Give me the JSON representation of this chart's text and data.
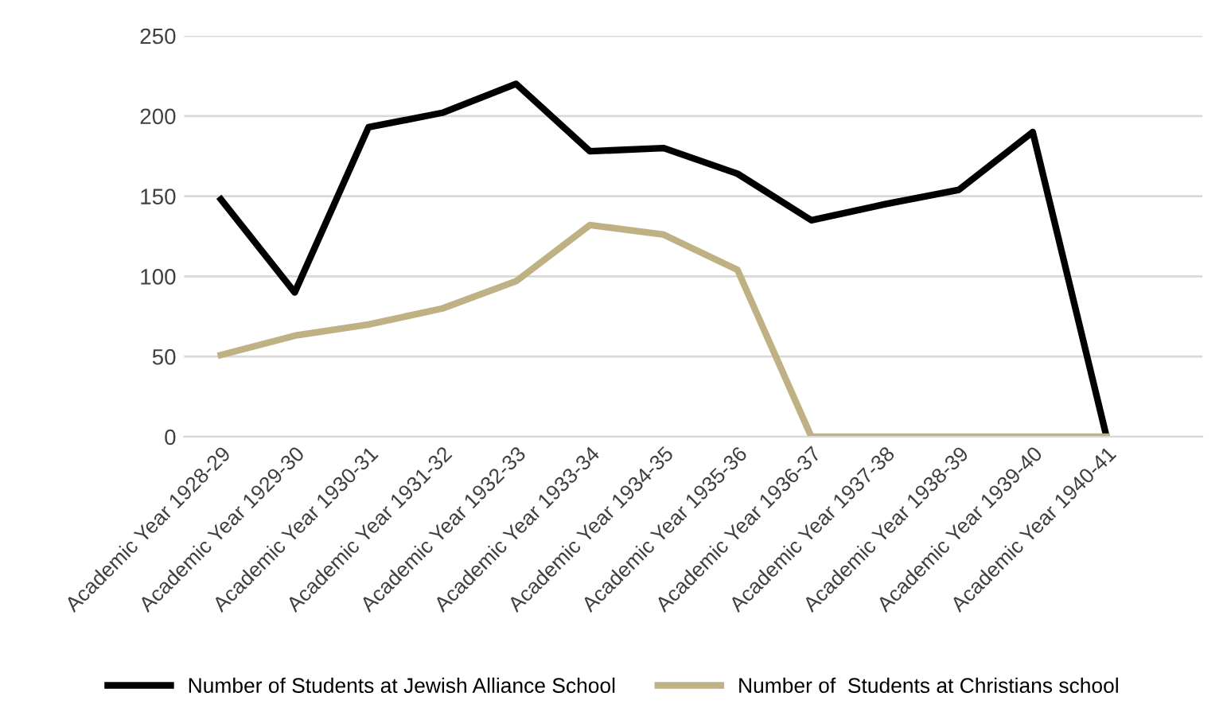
{
  "chart_data": {
    "type": "line",
    "categories": [
      "Academic Year 1928-29",
      "Academic Year 1929-30",
      "Academic Year 1930-31",
      "Academic Year 1931-32",
      "Academic Year 1932-33",
      "Academic Year 1933-34",
      "Academic Year 1934-35",
      "Academic Year 1935-36",
      "Academic Year 1936-37",
      "Academic Year 1937-38",
      "Academic Year 1938-39",
      "Academic Year 1939-40",
      "Academic Year 1940-41"
    ],
    "series": [
      {
        "name": "Number of Students at Jewish Alliance School",
        "color": "#000000",
        "values": [
          148,
          90,
          193,
          202,
          220,
          178,
          180,
          164,
          135,
          145,
          154,
          190,
          0
        ]
      },
      {
        "name": "Number of  Students at Christians school",
        "color": "#bfb184",
        "values": [
          51,
          63,
          70,
          80,
          97,
          132,
          126,
          104,
          0,
          0,
          0,
          0,
          0
        ]
      }
    ],
    "ylim": [
      0,
      250
    ],
    "yticks": [
      0,
      50,
      100,
      150,
      200,
      250
    ],
    "grid": "y",
    "legend": "bottom",
    "marker": "none",
    "line_style": "solid"
  }
}
